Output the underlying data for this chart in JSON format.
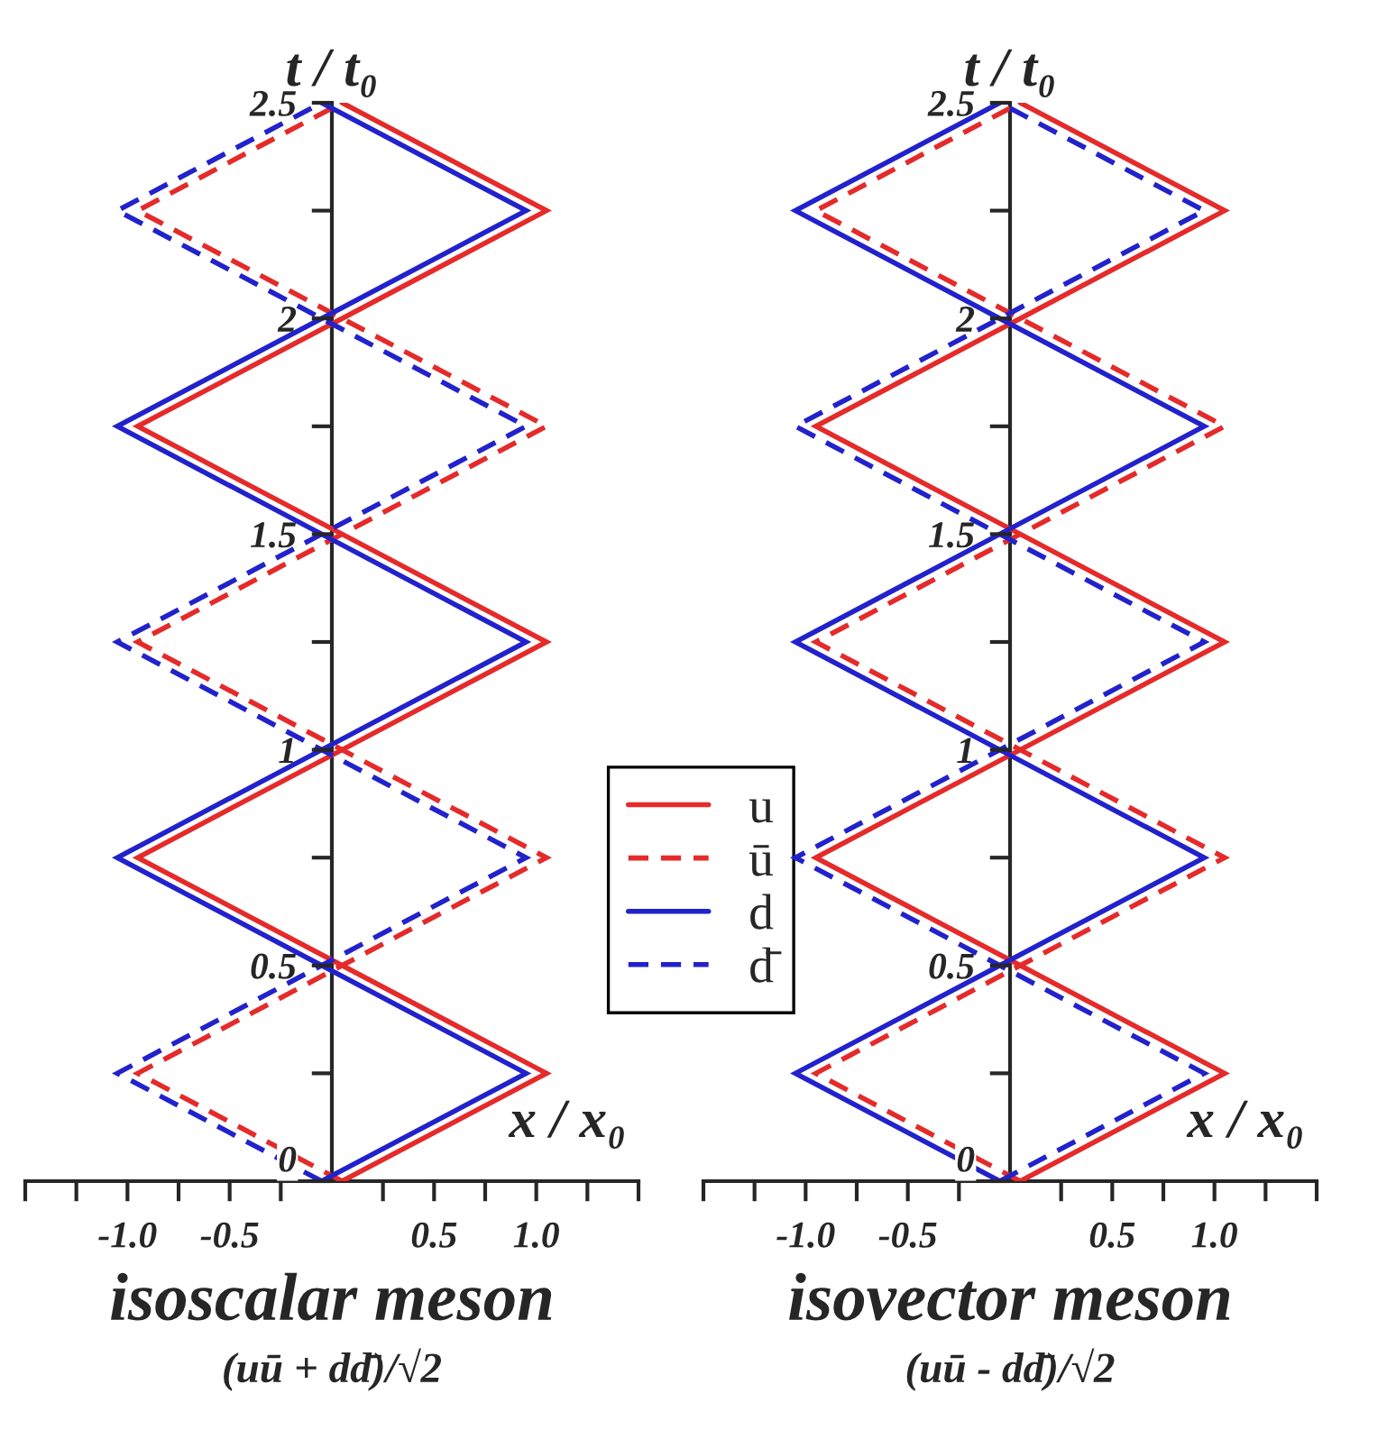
{
  "chart_data": [
    {
      "type": "line",
      "title": "isoscalar meson",
      "subtitle": "(uū + dd̄)/√2",
      "xlabel": "x / x₀",
      "ylabel": "t / t₀",
      "xlim": [
        -1.5,
        1.5
      ],
      "ylim": [
        0,
        2.5
      ],
      "xticks": [
        {
          "value": -1.5,
          "label": null
        },
        {
          "value": -1.25,
          "label": null
        },
        {
          "value": -1.0,
          "label": "-1.0"
        },
        {
          "value": -0.75,
          "label": null
        },
        {
          "value": -0.5,
          "label": "-0.5"
        },
        {
          "value": -0.25,
          "label": null
        },
        {
          "value": 0.25,
          "label": null
        },
        {
          "value": 0.5,
          "label": "0.5"
        },
        {
          "value": 0.75,
          "label": null
        },
        {
          "value": 1.0,
          "label": "1.0"
        },
        {
          "value": 1.25,
          "label": null
        },
        {
          "value": 1.5,
          "label": null
        }
      ],
      "yticks": [
        0,
        {
          "value": 0.25,
          "label": null
        },
        0.5,
        {
          "value": 0.75,
          "label": null
        },
        1,
        {
          "value": 1.25,
          "label": null
        },
        1.5,
        {
          "value": 1.75,
          "label": null
        },
        2,
        {
          "value": 2.25,
          "label": null
        },
        2.5
      ],
      "grid": false,
      "legend": "right",
      "marker": "none",
      "series": [
        {
          "name": "u",
          "color": "#e52a2a",
          "line_style": "solid",
          "x": [
            0.05,
            1.05,
            0.05,
            -0.95,
            0.05,
            1.05,
            0.05,
            -0.95,
            0.05,
            1.05,
            0.05
          ],
          "values": [
            0,
            0.25,
            0.5,
            0.75,
            1,
            1.25,
            1.5,
            1.75,
            2,
            2.25,
            2.5
          ]
        },
        {
          "name": "ū",
          "color": "#e52a2a",
          "line_style": "dashed",
          "x": [
            0.05,
            -0.95,
            0.05,
            1.05,
            0.05,
            -0.95,
            0.05,
            1.05,
            0.05,
            -0.95,
            0.05
          ],
          "values": [
            0,
            0.25,
            0.5,
            0.75,
            1,
            1.25,
            1.5,
            1.75,
            2,
            2.25,
            2.5
          ]
        },
        {
          "name": "d",
          "color": "#2222cc",
          "line_style": "solid",
          "x": [
            -0.05,
            0.95,
            -0.05,
            -1.05,
            -0.05,
            0.95,
            -0.05,
            -1.05,
            -0.05,
            0.95,
            -0.05
          ],
          "values": [
            0,
            0.25,
            0.5,
            0.75,
            1,
            1.25,
            1.5,
            1.75,
            2,
            2.25,
            2.5
          ]
        },
        {
          "name": "d̄",
          "color": "#2222cc",
          "line_style": "dashed",
          "x": [
            -0.05,
            -1.05,
            -0.05,
            0.95,
            -0.05,
            -1.05,
            -0.05,
            0.95,
            -0.05,
            -1.05,
            -0.05
          ],
          "values": [
            0,
            0.25,
            0.5,
            0.75,
            1,
            1.25,
            1.5,
            1.75,
            2,
            2.25,
            2.5
          ]
        }
      ]
    },
    {
      "type": "line",
      "title": "isovector meson",
      "subtitle": "(uū - dd̄)/√2",
      "xlabel": "x / x₀",
      "ylabel": "t / t₀",
      "xlim": [
        -1.5,
        1.5
      ],
      "ylim": [
        0,
        2.5
      ],
      "xticks": [
        {
          "value": -1.5,
          "label": null
        },
        {
          "value": -1.25,
          "label": null
        },
        {
          "value": -1.0,
          "label": "-1.0"
        },
        {
          "value": -0.75,
          "label": null
        },
        {
          "value": -0.5,
          "label": "-0.5"
        },
        {
          "value": -0.25,
          "label": null
        },
        {
          "value": 0.25,
          "label": null
        },
        {
          "value": 0.5,
          "label": "0.5"
        },
        {
          "value": 0.75,
          "label": null
        },
        {
          "value": 1.0,
          "label": "1.0"
        },
        {
          "value": 1.25,
          "label": null
        },
        {
          "value": 1.5,
          "label": null
        }
      ],
      "yticks": [
        0,
        {
          "value": 0.25,
          "label": null
        },
        0.5,
        {
          "value": 0.75,
          "label": null
        },
        1,
        {
          "value": 1.25,
          "label": null
        },
        1.5,
        {
          "value": 1.75,
          "label": null
        },
        2,
        {
          "value": 2.25,
          "label": null
        },
        2.5
      ],
      "grid": false,
      "marker": "none",
      "series": [
        {
          "color": "#e52a2a",
          "line_style": "solid",
          "x": [
            0.05,
            1.05,
            0.05,
            -0.95,
            0.05,
            1.05,
            0.05,
            -0.95,
            0.05,
            1.05,
            0.05
          ],
          "values": [
            0,
            0.25,
            0.5,
            0.75,
            1,
            1.25,
            1.5,
            1.75,
            2,
            2.25,
            2.5
          ]
        },
        {
          "color": "#e52a2a",
          "line_style": "dashed",
          "x": [
            0.05,
            -0.95,
            0.05,
            1.05,
            0.05,
            -0.95,
            0.05,
            1.05,
            0.05,
            -0.95,
            0.05
          ],
          "values": [
            0,
            0.25,
            0.5,
            0.75,
            1,
            1.25,
            1.5,
            1.75,
            2,
            2.25,
            2.5
          ]
        },
        {
          "color": "#2222cc",
          "line_style": "solid",
          "x": [
            -0.05,
            -1.05,
            -0.05,
            0.95,
            -0.05,
            -1.05,
            -0.05,
            0.95,
            -0.05,
            -1.05,
            -0.05
          ],
          "values": [
            0,
            0.25,
            0.5,
            0.75,
            1,
            1.25,
            1.5,
            1.75,
            2,
            2.25,
            2.5
          ]
        },
        {
          "color": "#2222cc",
          "line_style": "dashed",
          "x": [
            -0.05,
            0.95,
            -0.05,
            -1.05,
            -0.05,
            0.95,
            -0.05,
            -1.05,
            -0.05,
            0.95,
            -0.05
          ],
          "values": [
            0,
            0.25,
            0.5,
            0.75,
            1,
            1.25,
            1.5,
            1.75,
            2,
            2.25,
            2.5
          ]
        }
      ]
    }
  ]
}
